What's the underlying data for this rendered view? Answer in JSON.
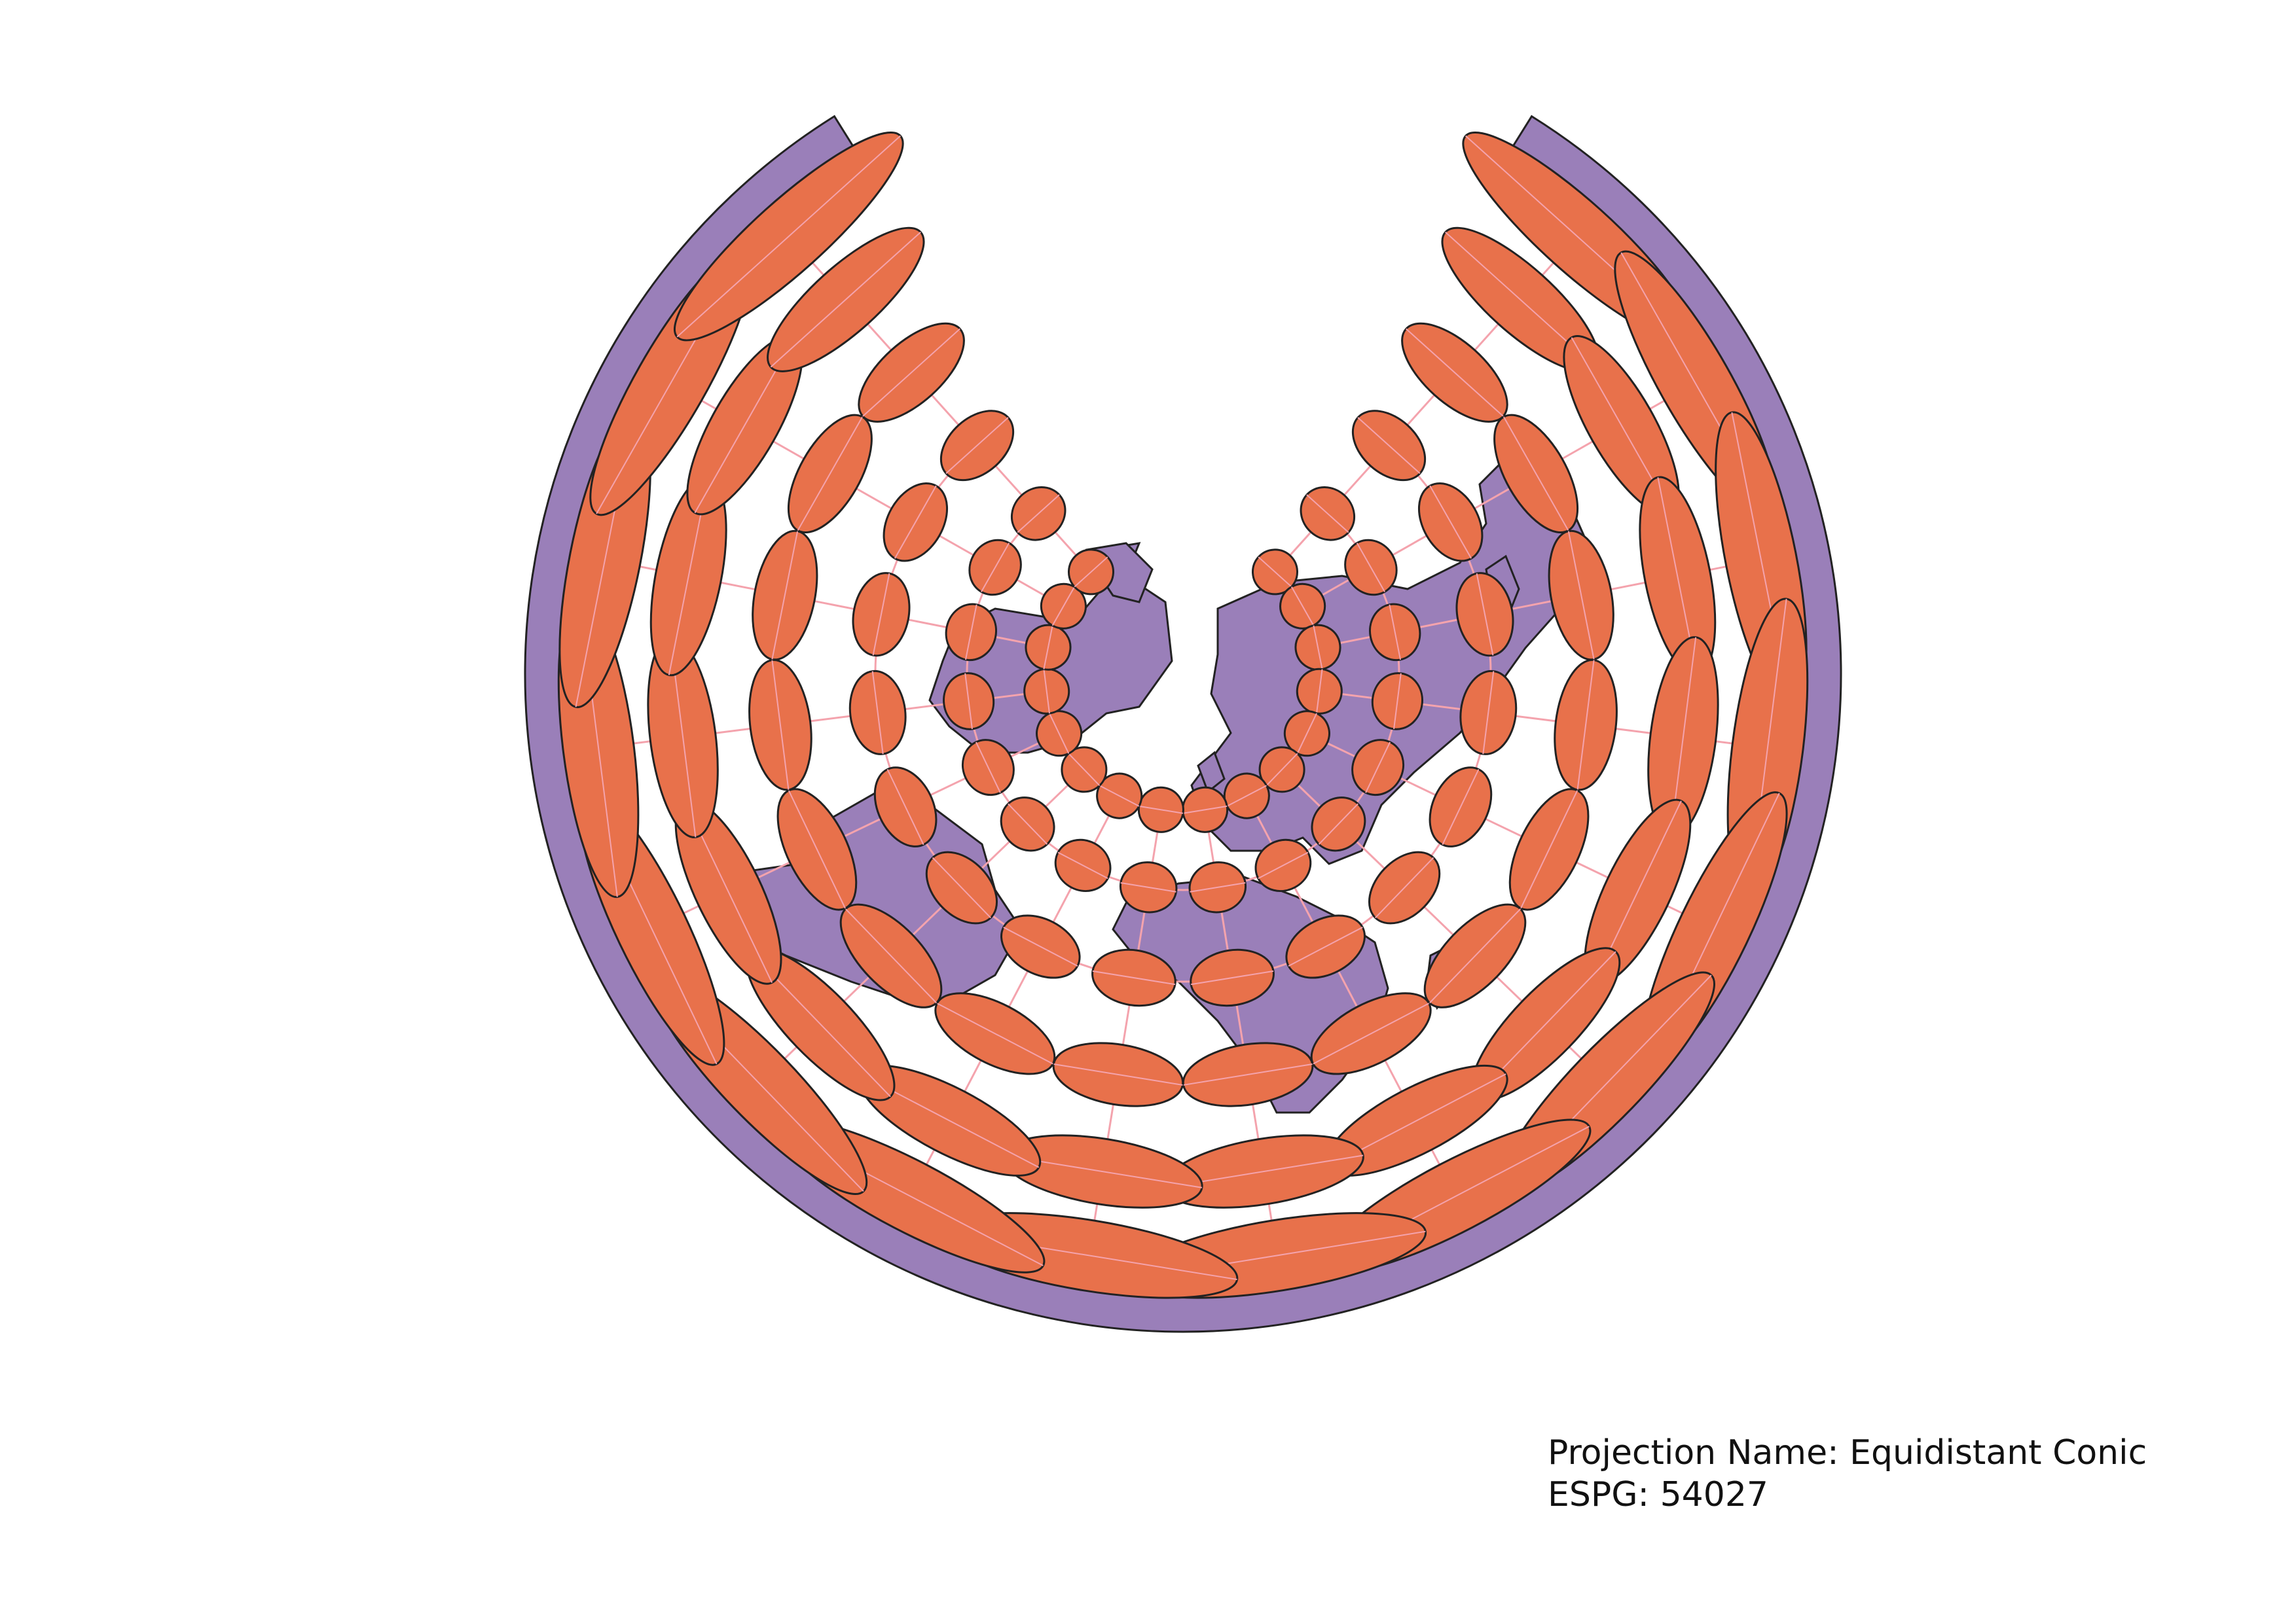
{
  "map": {
    "projection_name_line": "Projection Name: Equidistant Conic",
    "code_line": "ESPG: 54027",
    "colors": {
      "land": "#9a7fb9",
      "outline": "#222222",
      "ellipse": "#e8714b",
      "graticule": "#f4a3ad",
      "background": "#ffffff"
    },
    "indicatrix": {
      "rings": 6,
      "meridians": 16
    }
  }
}
